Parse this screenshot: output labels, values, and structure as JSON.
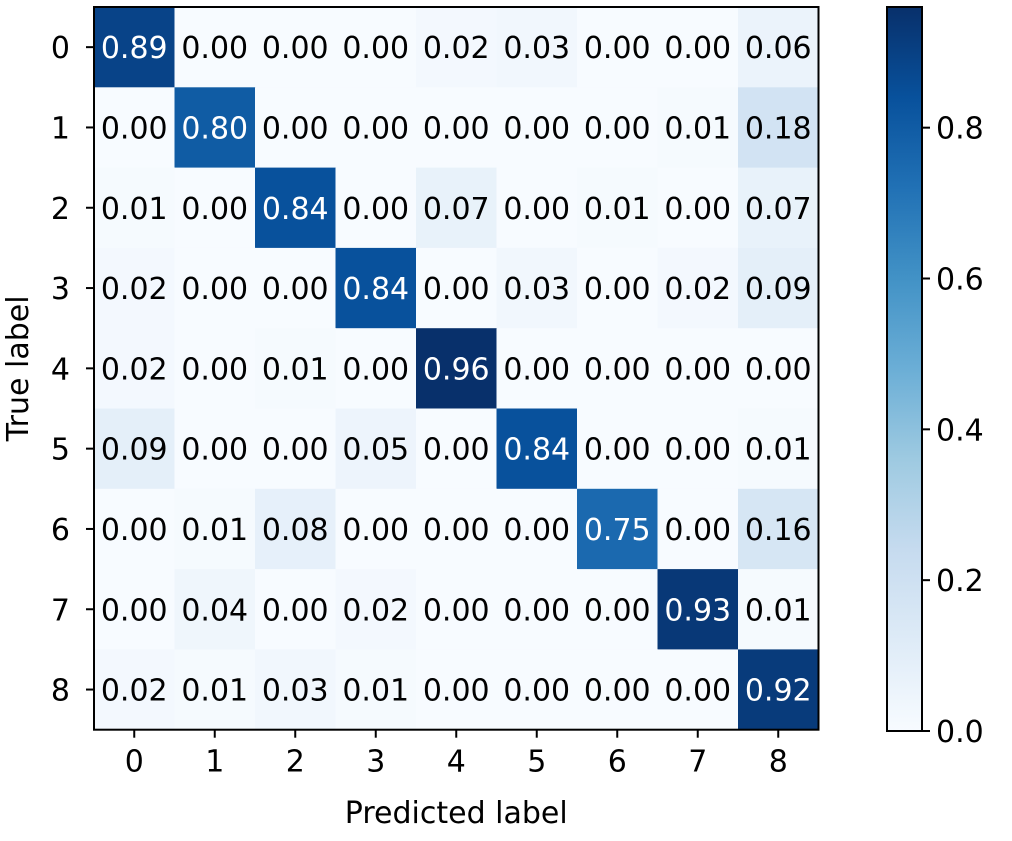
{
  "chart_data": {
    "type": "heatmap",
    "title": "",
    "xlabel": "Predicted label",
    "ylabel": "True label",
    "x_categories": [
      "0",
      "1",
      "2",
      "3",
      "4",
      "5",
      "6",
      "7",
      "8"
    ],
    "y_categories": [
      "0",
      "1",
      "2",
      "3",
      "4",
      "5",
      "6",
      "7",
      "8"
    ],
    "values": [
      [
        0.89,
        0.0,
        0.0,
        0.0,
        0.02,
        0.03,
        0.0,
        0.0,
        0.06
      ],
      [
        0.0,
        0.8,
        0.0,
        0.0,
        0.0,
        0.0,
        0.0,
        0.01,
        0.18
      ],
      [
        0.01,
        0.0,
        0.84,
        0.0,
        0.07,
        0.0,
        0.01,
        0.0,
        0.07
      ],
      [
        0.02,
        0.0,
        0.0,
        0.84,
        0.0,
        0.03,
        0.0,
        0.02,
        0.09
      ],
      [
        0.02,
        0.0,
        0.01,
        0.0,
        0.96,
        0.0,
        0.0,
        0.0,
        0.0
      ],
      [
        0.09,
        0.0,
        0.0,
        0.05,
        0.0,
        0.84,
        0.0,
        0.0,
        0.01
      ],
      [
        0.0,
        0.01,
        0.08,
        0.0,
        0.0,
        0.0,
        0.75,
        0.0,
        0.16
      ],
      [
        0.0,
        0.04,
        0.0,
        0.02,
        0.0,
        0.0,
        0.0,
        0.93,
        0.01
      ],
      [
        0.02,
        0.01,
        0.03,
        0.01,
        0.0,
        0.0,
        0.0,
        0.0,
        0.92
      ]
    ],
    "value_format": "0.00",
    "colormap": "Blues",
    "colorbar": {
      "range": [
        0,
        0.96
      ],
      "ticks": [
        0.0,
        0.2,
        0.4,
        0.6,
        0.8
      ],
      "tick_labels": [
        "0.0",
        "0.2",
        "0.4",
        "0.6",
        "0.8"
      ]
    },
    "grid": false,
    "legend": "none"
  }
}
